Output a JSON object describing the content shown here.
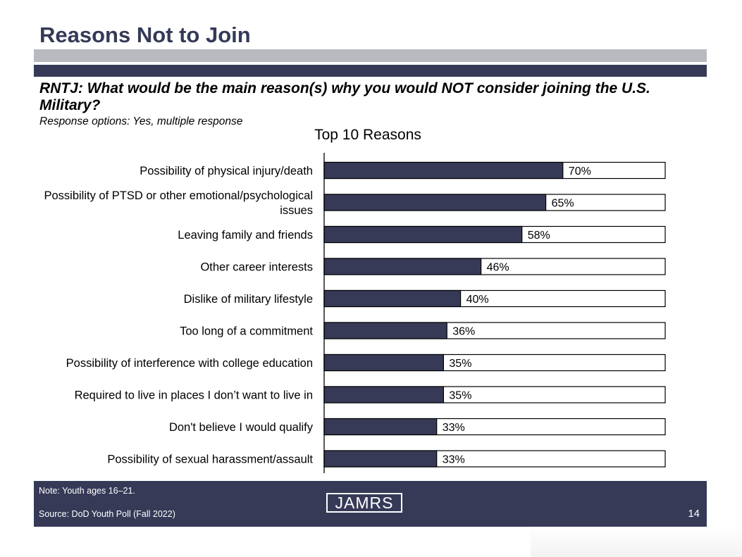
{
  "slide": {
    "title": "Reasons Not to Join",
    "question": "RNTJ: What would be the main reason(s) why you would NOT consider joining the U.S. Military?",
    "response_note": "Response options: Yes, multiple response"
  },
  "colors": {
    "navy": "#363a57",
    "title_navy": "#353a58",
    "gray_band": "#b9b9c0",
    "bar_fill": "#363a57",
    "bar_remainder": "#ffffff"
  },
  "chart_data": {
    "type": "bar",
    "orientation": "horizontal",
    "title": "Top 10 Reasons",
    "categories": [
      "Possibility of physical injury/death",
      "Possibility of PTSD or other emotional/psychological issues",
      "Leaving family and friends",
      "Other career interests",
      "Dislike of military lifestyle",
      "Too long of a commitment",
      "Possibility of interference with college education",
      "Required to live in places I don’t want to live in",
      "Don't believe I would qualify",
      "Possibility of sexual harassment/assault"
    ],
    "category_label_lines": [
      [
        "Possibility of physical injury/death"
      ],
      [
        "Possibility of PTSD or other emotional/psychological",
        "issues"
      ],
      [
        "Leaving family and friends"
      ],
      [
        "Other career interests"
      ],
      [
        "Dislike of military lifestyle"
      ],
      [
        "Too long of a commitment"
      ],
      [
        "Possibility of interference with college education"
      ],
      [
        "Required to live in places I don’t want to live in"
      ],
      [
        "Don't believe I would qualify"
      ],
      [
        "Possibility of sexual harassment/assault"
      ]
    ],
    "values": [
      70,
      65,
      58,
      46,
      40,
      36,
      35,
      35,
      33,
      33
    ],
    "data_labels": [
      "70%",
      "65%",
      "58%",
      "46%",
      "40%",
      "36%",
      "35%",
      "35%",
      "33%",
      "33%"
    ],
    "xlim": [
      0,
      100
    ],
    "unit": "%",
    "stacked_remainder": true,
    "grid": false,
    "legend": "none"
  },
  "footer": {
    "note": "Note: Youth ages 16–21.",
    "source": "Source: DoD Youth Poll (Fall 2022)",
    "logo_text": "JAMRS",
    "page_number": "14"
  }
}
